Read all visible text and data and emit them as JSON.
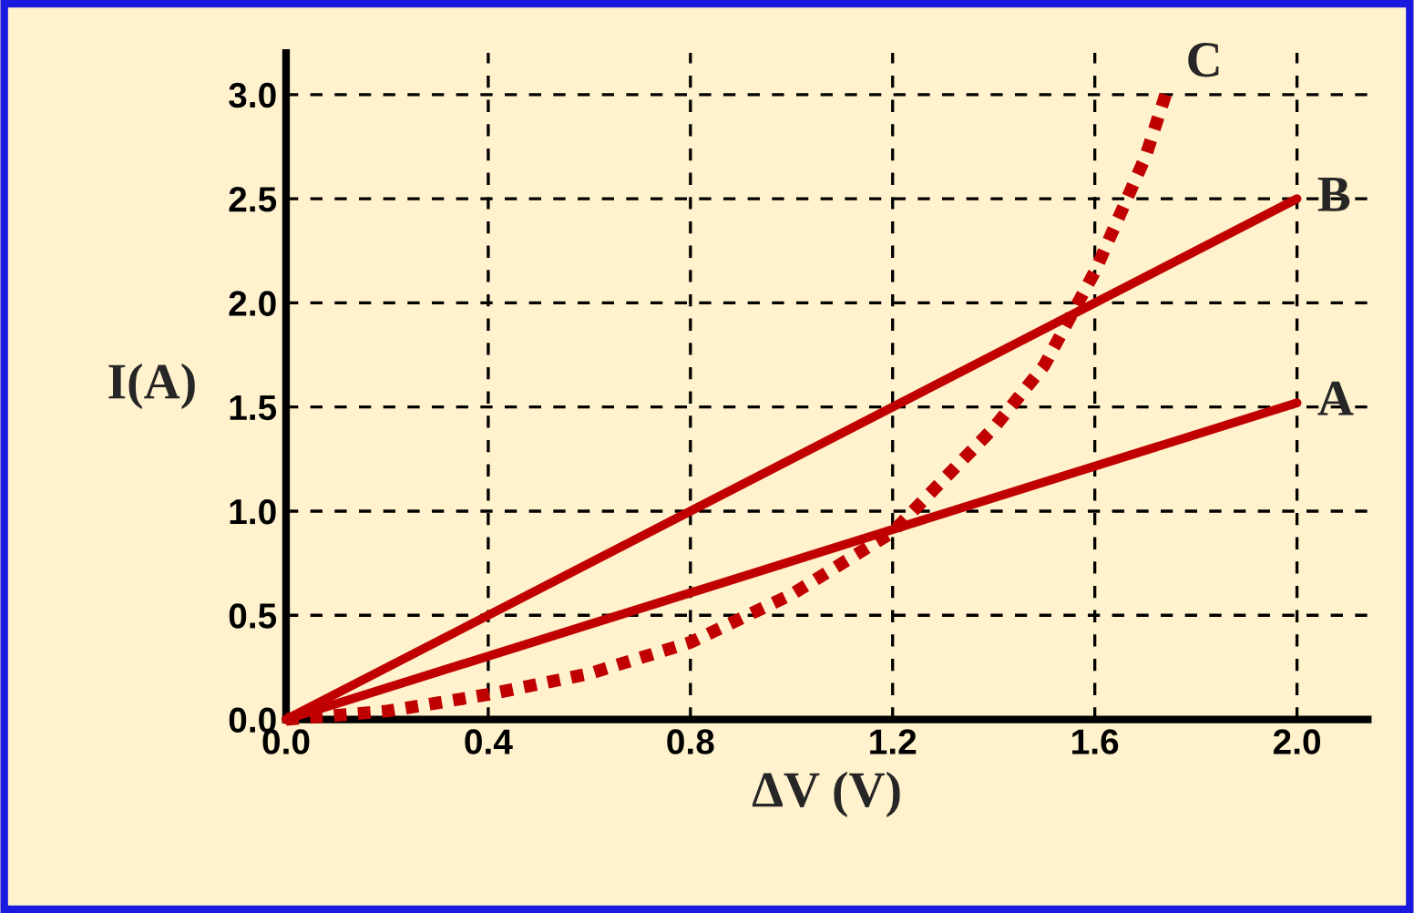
{
  "chart_data": {
    "type": "line",
    "xlabel": "ΔV (V)",
    "ylabel": "I(A)",
    "xlim": [
      0,
      2.14
    ],
    "ylim": [
      0,
      3.2
    ],
    "xticks": [
      {
        "value": 0,
        "label": "0.0"
      },
      0.4,
      0.8,
      1.2,
      1.6,
      {
        "value": 2,
        "label": "2.0"
      }
    ],
    "yticks": [
      {
        "value": 0,
        "label": "0.0"
      },
      0.5,
      {
        "value": 1,
        "label": "1.0"
      },
      1.5,
      {
        "value": 2,
        "label": "2.0"
      },
      2.5,
      {
        "value": 3,
        "label": "3.0"
      }
    ],
    "grid": true,
    "legend": false,
    "marker": "none",
    "series": [
      {
        "name": "A",
        "color": "#c00000",
        "line_style": "solid",
        "x": [
          0,
          2.0
        ],
        "values": [
          0,
          1.52
        ]
      },
      {
        "name": "B",
        "color": "#c00000",
        "line_style": "solid",
        "x": [
          0,
          2.0
        ],
        "values": [
          0,
          2.5
        ]
      },
      {
        "name": "C",
        "color": "#c00000",
        "line_style": "dotted",
        "x": [
          0,
          0.2,
          0.4,
          0.6,
          0.8,
          1.0,
          1.2,
          1.4,
          1.5,
          1.6,
          1.7,
          1.74
        ],
        "values": [
          0,
          0.04,
          0.12,
          0.22,
          0.37,
          0.6,
          0.9,
          1.4,
          1.7,
          2.15,
          2.7,
          3.0
        ]
      }
    ]
  }
}
